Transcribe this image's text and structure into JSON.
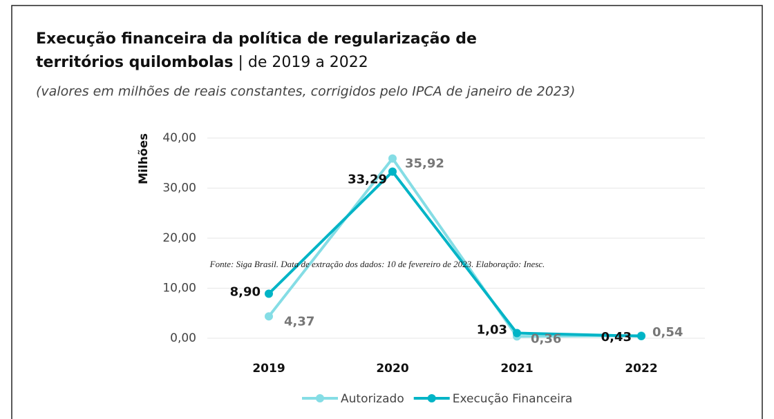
{
  "chart_data": {
    "type": "line",
    "title": "Execução financeira da política de regularização de",
    "title_line2": "territórios quilombolas",
    "title_suffix": "| de 2019 a 2022",
    "subtitle": "(valores em milhões de reais constantes, corrigidos pelo IPCA de janeiro de 2023)",
    "ylabel": "Milhões",
    "source": "Fonte: Siga Brasil. Data de extração dos dados: 10 de fevereiro de 2023. Elaboração: Inesc.",
    "categories": [
      "2019",
      "2020",
      "2021",
      "2022"
    ],
    "ylim": [
      0,
      40
    ],
    "yticks": [
      {
        "value": 0,
        "label": "0,00"
      },
      {
        "value": 10,
        "label": "10,00"
      },
      {
        "value": 20,
        "label": "20,00"
      },
      {
        "value": 30,
        "label": "30,00"
      },
      {
        "value": 40,
        "label": "40,00"
      }
    ],
    "grid": true,
    "legend": "bottom",
    "series": [
      {
        "name": "Autorizado",
        "color": "#85dde5",
        "values": [
          4.37,
          35.92,
          0.36,
          0.54
        ],
        "value_labels": [
          "4,37",
          "35,92",
          "0,36",
          "0,54"
        ]
      },
      {
        "name": "Execução Financeira",
        "color": "#00b4c6",
        "values": [
          8.9,
          33.29,
          1.03,
          0.43
        ],
        "value_labels": [
          "8,90",
          "33,29",
          "1,03",
          "0,43"
        ]
      }
    ]
  }
}
